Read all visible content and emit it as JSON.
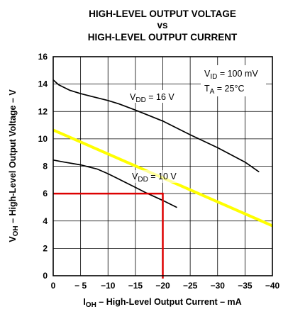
{
  "chart_data": {
    "type": "line",
    "title_lines": [
      "HIGH-LEVEL OUTPUT VOLTAGE",
      "vs",
      "HIGH-LEVEL OUTPUT CURRENT"
    ],
    "xlabel": {
      "main": "I",
      "sub": "OH",
      "rest": " – High-Level Output Current – mA"
    },
    "ylabel": {
      "main": "V",
      "sub": "OH",
      "rest": " – High-Level Output Voltage – V"
    },
    "xlim": [
      0,
      -40
    ],
    "ylim": [
      0,
      16
    ],
    "x_ticks": [
      0,
      -5,
      -10,
      -15,
      -20,
      -25,
      -30,
      -35,
      -40
    ],
    "x_tick_labels": [
      "0",
      "− 5",
      "−10",
      "−15",
      "−20",
      "−25",
      "−30",
      "−35",
      "−40"
    ],
    "y_ticks": [
      0,
      2,
      4,
      6,
      8,
      10,
      12,
      14,
      16
    ],
    "y_tick_labels": [
      "0",
      "2",
      "4",
      "6",
      "8",
      "10",
      "12",
      "14",
      "16"
    ],
    "grid": true,
    "conditions": [
      {
        "main": "V",
        "sub": "ID",
        "rest": " = 100 mV"
      },
      {
        "main": "T",
        "sub": "A",
        "rest": " = 25°C"
      }
    ],
    "series": [
      {
        "name": {
          "main": "V",
          "sub": "DD",
          "rest": " = 16 V"
        },
        "color": "#000000",
        "x": [
          0,
          -1,
          -3,
          -5,
          -8,
          -10,
          -12,
          -15,
          -20,
          -25,
          -30,
          -35,
          -37.5
        ],
        "y": [
          14.3,
          13.95,
          13.55,
          13.3,
          13.0,
          12.8,
          12.55,
          12.1,
          11.3,
          10.3,
          9.35,
          8.3,
          7.6
        ]
      },
      {
        "name": {
          "main": "V",
          "sub": "DD",
          "rest": " = 10 V"
        },
        "color": "#000000",
        "x": [
          0,
          -2,
          -5,
          -8,
          -10,
          -12,
          -15,
          -17,
          -20,
          -22.5
        ],
        "y": [
          8.45,
          8.3,
          8.1,
          7.8,
          7.45,
          7.05,
          6.45,
          6.05,
          5.5,
          5.0
        ]
      },
      {
        "name": "",
        "color": "#ffff00",
        "x": [
          2,
          -42
        ],
        "y": [
          11.0,
          3.3
        ]
      }
    ],
    "highlight": {
      "x": -20,
      "y": 6,
      "color": "#dd0000"
    }
  }
}
